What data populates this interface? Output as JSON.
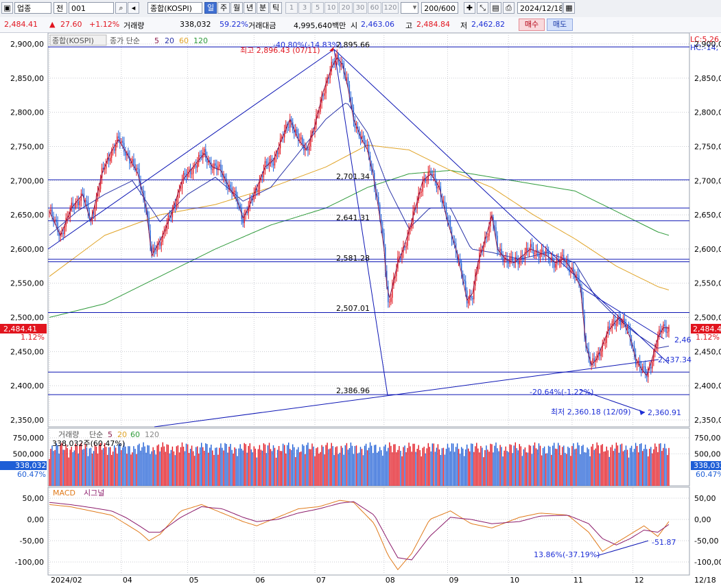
{
  "toolbar": {
    "market": "업종",
    "market_type": "전",
    "code": "001",
    "name": "종합(KOSPI)",
    "periods": [
      "일",
      "주",
      "월",
      "년",
      "분",
      "틱"
    ],
    "selected_period": "일",
    "minutes": [
      "1",
      "3",
      "5",
      "10",
      "20",
      "30",
      "60",
      "120"
    ],
    "count": "200/600",
    "date": "2024/12/18"
  },
  "quote": {
    "price": "2,484.41",
    "arrow": "▲",
    "change": "27.60",
    "change_pct": "+1.12%",
    "volume_label": "거래량",
    "volume": "338,032",
    "volume_ratio": "59.22%",
    "amount_label": "거래대금",
    "amount": "4,995,640백만",
    "open_label": "시",
    "open": "2,463.06",
    "high_label": "고",
    "high": "2,484.84",
    "low_label": "저",
    "low": "2,462.82",
    "buy_label": "매수",
    "sell_label": "매도"
  },
  "colors": {
    "up": "#e1141e",
    "down": "#1e5ed6",
    "ma5": "#8b1a4a",
    "ma20": "#2a34a8",
    "ma60": "#e0a326",
    "ma120": "#2e9a3a",
    "grid": "#c9cbd1",
    "line": "#0b14b4"
  },
  "chart_data": [
    {
      "type": "candlestick",
      "title": "종합(KOSPI)",
      "legend_prefix": "종가 단순",
      "ma_periods": [
        "5",
        "20",
        "60",
        "120"
      ],
      "right_top_labels": [
        "LC:5,26",
        "HC:-14,"
      ],
      "ylim": [
        2350,
        2900
      ],
      "yticks": [
        2350,
        2400,
        2450,
        2500,
        2550,
        2600,
        2650,
        2700,
        2750,
        2800,
        2850,
        2900
      ],
      "ytick_labels": [
        "2,350,00",
        "2,400,00",
        "2,450,00",
        "2,500,00",
        "2,550,00",
        "2,600,00",
        "2,650,00",
        "2,700,00",
        "2,750,00",
        "2,800,00",
        "2,850,00",
        "2,900,00"
      ],
      "current_price": "2,484.41",
      "current_pct": "1.12%",
      "close_path": [
        [
          0,
          2655
        ],
        [
          8,
          2620
        ],
        [
          16,
          2660
        ],
        [
          24,
          2680
        ],
        [
          30,
          2640
        ],
        [
          38,
          2710
        ],
        [
          44,
          2740
        ],
        [
          50,
          2760
        ],
        [
          56,
          2740
        ],
        [
          64,
          2710
        ],
        [
          70,
          2660
        ],
        [
          74,
          2590
        ],
        [
          78,
          2605
        ],
        [
          82,
          2620
        ],
        [
          88,
          2650
        ],
        [
          96,
          2700
        ],
        [
          104,
          2720
        ],
        [
          112,
          2740
        ],
        [
          118,
          2720
        ],
        [
          124,
          2715
        ],
        [
          130,
          2690
        ],
        [
          136,
          2670
        ],
        [
          140,
          2645
        ],
        [
          144,
          2660
        ],
        [
          150,
          2690
        ],
        [
          156,
          2720
        ],
        [
          162,
          2730
        ],
        [
          168,
          2760
        ],
        [
          174,
          2790
        ],
        [
          180,
          2760
        ],
        [
          186,
          2745
        ],
        [
          192,
          2780
        ],
        [
          198,
          2830
        ],
        [
          204,
          2865
        ],
        [
          208,
          2880
        ],
        [
          212,
          2870
        ],
        [
          216,
          2835
        ],
        [
          220,
          2790
        ],
        [
          226,
          2760
        ],
        [
          230,
          2745
        ],
        [
          234,
          2710
        ],
        [
          238,
          2660
        ],
        [
          242,
          2600
        ],
        [
          245,
          2520
        ],
        [
          248,
          2545
        ],
        [
          252,
          2580
        ],
        [
          256,
          2600
        ],
        [
          262,
          2640
        ],
        [
          266,
          2670
        ],
        [
          270,
          2700
        ],
        [
          276,
          2710
        ],
        [
          282,
          2690
        ],
        [
          288,
          2640
        ],
        [
          294,
          2600
        ],
        [
          298,
          2565
        ],
        [
          302,
          2525
        ],
        [
          306,
          2535
        ],
        [
          310,
          2580
        ],
        [
          316,
          2620
        ],
        [
          320,
          2650
        ],
        [
          324,
          2600
        ],
        [
          330,
          2585
        ],
        [
          336,
          2580
        ],
        [
          342,
          2590
        ],
        [
          348,
          2600
        ],
        [
          354,
          2595
        ],
        [
          360,
          2590
        ],
        [
          366,
          2580
        ],
        [
          372,
          2585
        ],
        [
          378,
          2570
        ],
        [
          384,
          2545
        ],
        [
          388,
          2460
        ],
        [
          392,
          2430
        ],
        [
          396,
          2440
        ],
        [
          400,
          2460
        ],
        [
          404,
          2480
        ],
        [
          408,
          2490
        ],
        [
          412,
          2500
        ],
        [
          416,
          2490
        ],
        [
          420,
          2470
        ],
        [
          424,
          2440
        ],
        [
          428,
          2425
        ],
        [
          432,
          2415
        ],
        [
          436,
          2440
        ],
        [
          440,
          2470
        ],
        [
          444,
          2485
        ],
        [
          448,
          2484.41
        ]
      ],
      "ma20_path": [
        [
          0,
          2620
        ],
        [
          20,
          2655
        ],
        [
          40,
          2680
        ],
        [
          60,
          2700
        ],
        [
          80,
          2640
        ],
        [
          100,
          2680
        ],
        [
          120,
          2705
        ],
        [
          140,
          2670
        ],
        [
          160,
          2690
        ],
        [
          180,
          2740
        ],
        [
          200,
          2790
        ],
        [
          215,
          2815
        ],
        [
          230,
          2770
        ],
        [
          245,
          2690
        ],
        [
          260,
          2630
        ],
        [
          275,
          2660
        ],
        [
          290,
          2660
        ],
        [
          305,
          2600
        ],
        [
          320,
          2595
        ],
        [
          340,
          2585
        ],
        [
          360,
          2595
        ],
        [
          380,
          2580
        ],
        [
          395,
          2530
        ],
        [
          410,
          2500
        ],
        [
          425,
          2475
        ],
        [
          440,
          2455
        ],
        [
          448,
          2458
        ]
      ],
      "ma60_path": [
        [
          0,
          2560
        ],
        [
          40,
          2620
        ],
        [
          80,
          2650
        ],
        [
          120,
          2665
        ],
        [
          160,
          2690
        ],
        [
          200,
          2720
        ],
        [
          230,
          2752
        ],
        [
          260,
          2745
        ],
        [
          290,
          2715
        ],
        [
          320,
          2690
        ],
        [
          350,
          2650
        ],
        [
          380,
          2615
        ],
        [
          410,
          2575
        ],
        [
          440,
          2545
        ],
        [
          448,
          2540
        ]
      ],
      "ma120_path": [
        [
          0,
          2500
        ],
        [
          40,
          2520
        ],
        [
          80,
          2560
        ],
        [
          120,
          2600
        ],
        [
          160,
          2635
        ],
        [
          200,
          2660
        ],
        [
          230,
          2690
        ],
        [
          260,
          2710
        ],
        [
          290,
          2715
        ],
        [
          320,
          2705
        ],
        [
          350,
          2695
        ],
        [
          380,
          2685
        ],
        [
          410,
          2655
        ],
        [
          440,
          2625
        ],
        [
          448,
          2620
        ]
      ],
      "hlines": [
        2895.66,
        2701.34,
        2641.31,
        2581.28,
        2507.01,
        2386.96,
        2660,
        2585,
        2420
      ],
      "hline_labels": [
        "2,895.66",
        "2,701.34",
        "2,641.31",
        "2,581.28",
        "2,507.01",
        "2,386.96"
      ],
      "annotations": [
        {
          "text": "최고 2,896.43 (07/11)",
          "color": "red"
        },
        {
          "text": "-40.80%(-14.83%)",
          "color": "blue"
        },
        {
          "text": "-20.64%(-1.22%)",
          "color": "blue"
        },
        {
          "text": "최저 2,360.18 (12/09)",
          "color": "blue"
        },
        {
          "text": "2,360.91",
          "color": "blue"
        },
        {
          "text": "2,437.34",
          "color": "blue"
        },
        {
          "text": "2,46",
          "color": "blue"
        }
      ]
    },
    {
      "type": "bar",
      "title": "거래량",
      "legend_prefix": "단순",
      "ma_periods": [
        "5",
        "20",
        "60",
        "120"
      ],
      "value_text": "338,032주(60.47%)",
      "ylim": [
        0,
        900000
      ],
      "yticks": [
        500000,
        750000
      ],
      "ytick_labels": [
        "500,000",
        "750,000"
      ],
      "current_value": "338,032",
      "current_pct": "60.47%"
    },
    {
      "type": "line",
      "title": "MACD",
      "signal_label": "시그널",
      "ylim": [
        -115,
        65
      ],
      "yticks": [
        -100,
        -50,
        0,
        50
      ],
      "ytick_labels": [
        "-100,00",
        "-50,00",
        "0,00",
        "50,00"
      ],
      "macd_path": [
        [
          0,
          35
        ],
        [
          15,
          30
        ],
        [
          30,
          20
        ],
        [
          45,
          10
        ],
        [
          55,
          -10
        ],
        [
          65,
          -30
        ],
        [
          72,
          -50
        ],
        [
          80,
          -35
        ],
        [
          95,
          20
        ],
        [
          110,
          35
        ],
        [
          125,
          15
        ],
        [
          140,
          -5
        ],
        [
          150,
          -15
        ],
        [
          165,
          5
        ],
        [
          180,
          25
        ],
        [
          195,
          30
        ],
        [
          210,
          45
        ],
        [
          220,
          40
        ],
        [
          235,
          -10
        ],
        [
          245,
          -85
        ],
        [
          252,
          -118
        ],
        [
          262,
          -80
        ],
        [
          275,
          0
        ],
        [
          290,
          20
        ],
        [
          305,
          -10
        ],
        [
          320,
          -20
        ],
        [
          340,
          5
        ],
        [
          355,
          15
        ],
        [
          375,
          10
        ],
        [
          390,
          -30
        ],
        [
          400,
          -75
        ],
        [
          410,
          -55
        ],
        [
          420,
          -35
        ],
        [
          430,
          -15
        ],
        [
          440,
          -40
        ],
        [
          448,
          -5
        ]
      ],
      "signal_path": [
        [
          0,
          40
        ],
        [
          15,
          35
        ],
        [
          30,
          28
        ],
        [
          45,
          20
        ],
        [
          55,
          5
        ],
        [
          65,
          -15
        ],
        [
          72,
          -30
        ],
        [
          80,
          -30
        ],
        [
          95,
          5
        ],
        [
          110,
          30
        ],
        [
          125,
          25
        ],
        [
          140,
          5
        ],
        [
          150,
          -5
        ],
        [
          165,
          0
        ],
        [
          180,
          15
        ],
        [
          195,
          25
        ],
        [
          210,
          38
        ],
        [
          220,
          42
        ],
        [
          235,
          10
        ],
        [
          245,
          -50
        ],
        [
          252,
          -90
        ],
        [
          262,
          -95
        ],
        [
          275,
          -40
        ],
        [
          290,
          5
        ],
        [
          305,
          0
        ],
        [
          320,
          -10
        ],
        [
          340,
          -5
        ],
        [
          355,
          8
        ],
        [
          375,
          10
        ],
        [
          390,
          -10
        ],
        [
          400,
          -45
        ],
        [
          410,
          -60
        ],
        [
          420,
          -45
        ],
        [
          430,
          -25
        ],
        [
          440,
          -30
        ],
        [
          448,
          -12
        ]
      ],
      "annotations": [
        {
          "text": "13.86%(-37.19%)"
        },
        {
          "text": "-51.87"
        }
      ]
    }
  ],
  "x_axis": {
    "labels": [
      "2024/02",
      "04",
      "05",
      "06",
      "07",
      "08",
      "09",
      "10",
      "11",
      "12"
    ],
    "right_label": "12/18"
  }
}
